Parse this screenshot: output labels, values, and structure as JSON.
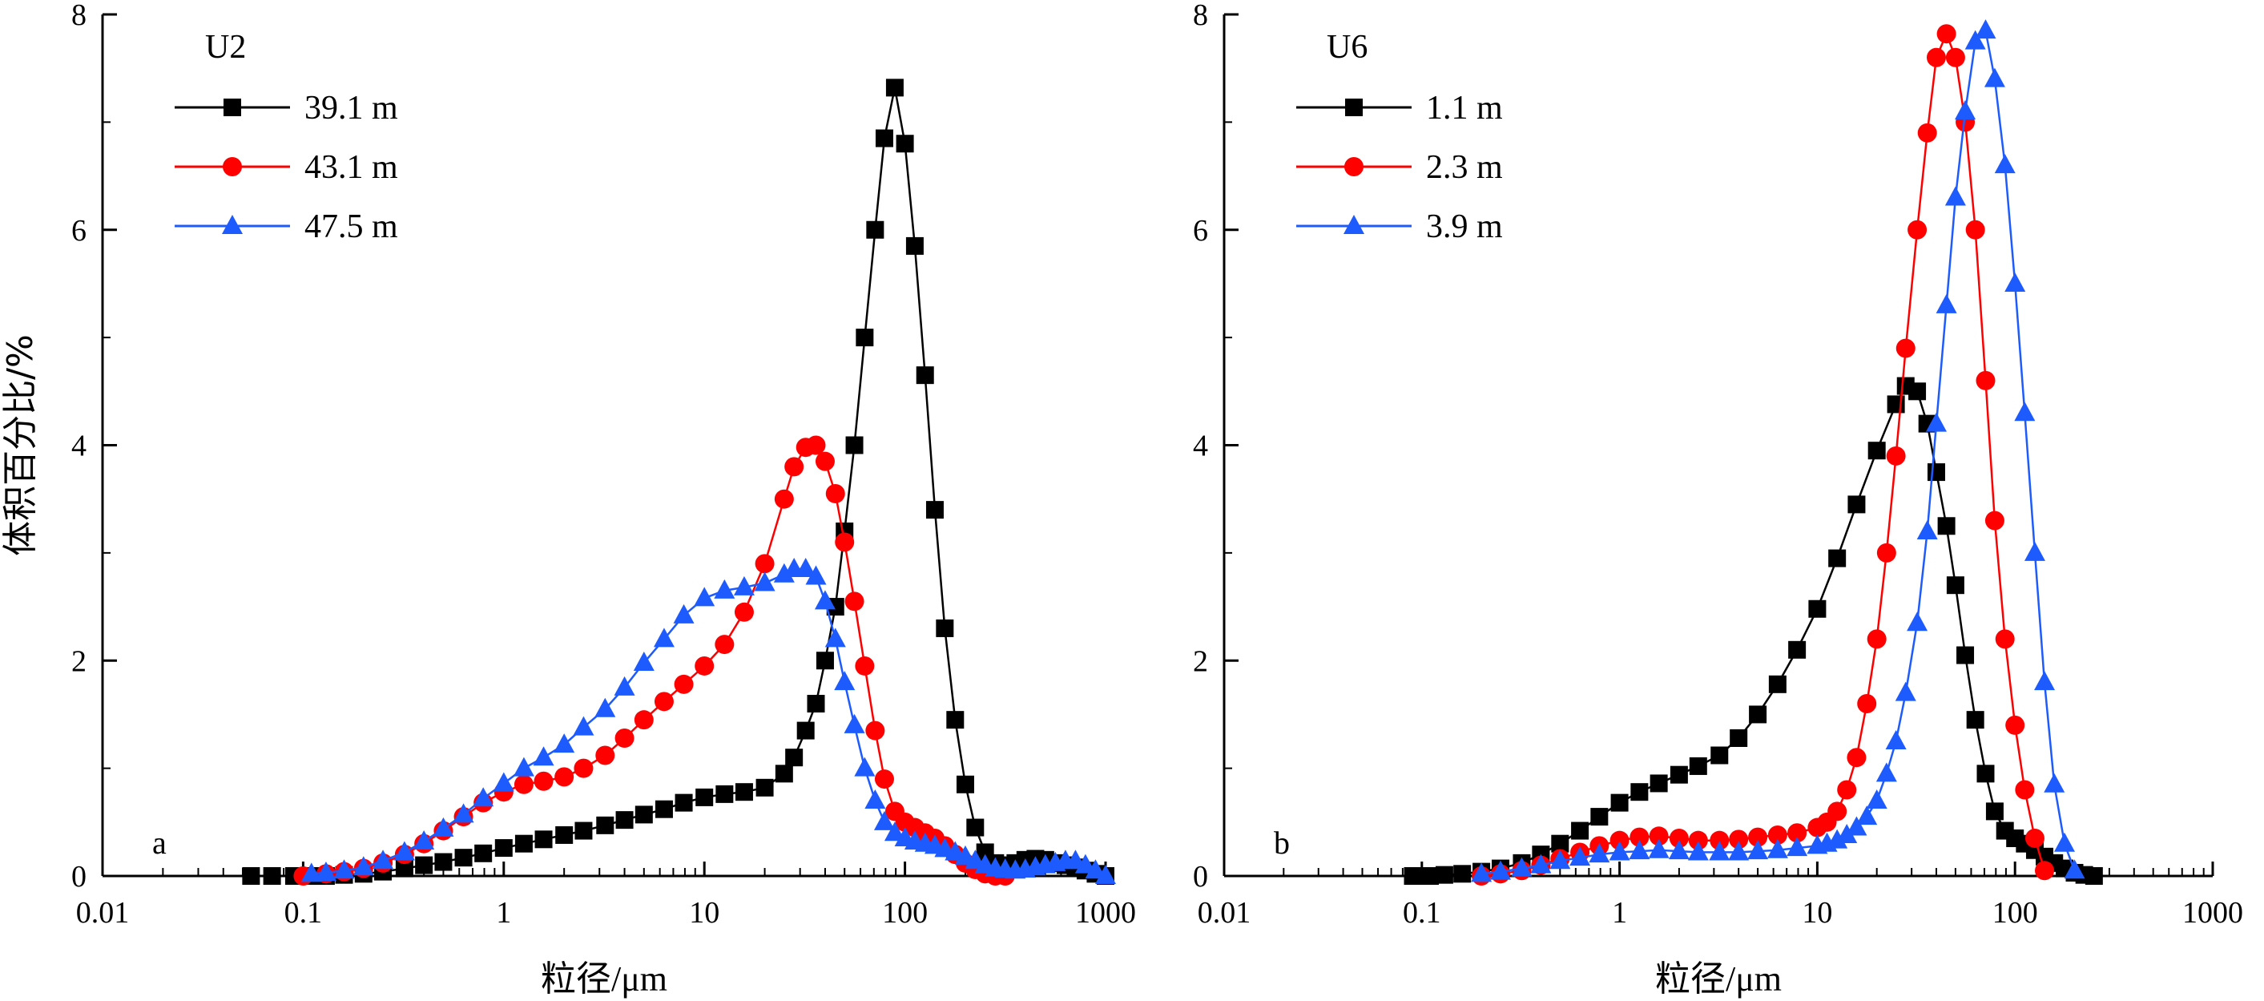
{
  "chart_data": [
    {
      "type": "line",
      "panel_id": "panel-a",
      "title": "U2",
      "panel_tag": "a",
      "xlabel": "粒径/μm",
      "ylabel": "体积百分比/%",
      "xscale": "log",
      "xlim": [
        0.01,
        1000
      ],
      "ylim": [
        0,
        8
      ],
      "xticks": [
        "0.01",
        "0.1",
        "1",
        "10",
        "100",
        "1000"
      ],
      "yticks": [
        "0",
        "2",
        "4",
        "6",
        "8"
      ],
      "legend_position": "top-left",
      "series": [
        {
          "name": "39.1 m",
          "color": "#000000",
          "marker": "square",
          "x": [
            0.055,
            0.07,
            0.09,
            0.11,
            0.13,
            0.16,
            0.2,
            0.25,
            0.32,
            0.4,
            0.5,
            0.63,
            0.79,
            1,
            1.26,
            1.58,
            2,
            2.5,
            3.2,
            4,
            5,
            6.3,
            7.9,
            10,
            12.6,
            15.8,
            20,
            25,
            28,
            32,
            36,
            40,
            45,
            50,
            56,
            63,
            71,
            79,
            89,
            100,
            112,
            126,
            141,
            158,
            178,
            200,
            224,
            251,
            282,
            316,
            355,
            398,
            447,
            501,
            562,
            631,
            708,
            794,
            891,
            1000
          ],
          "y": [
            0.0,
            0.0,
            0.0,
            0.0,
            0.0,
            0.01,
            0.02,
            0.04,
            0.07,
            0.1,
            0.13,
            0.17,
            0.21,
            0.26,
            0.3,
            0.34,
            0.38,
            0.42,
            0.47,
            0.52,
            0.57,
            0.62,
            0.68,
            0.73,
            0.76,
            0.78,
            0.82,
            0.95,
            1.1,
            1.35,
            1.6,
            2.0,
            2.5,
            3.2,
            4.0,
            5.0,
            6.0,
            6.85,
            7.32,
            6.8,
            5.85,
            4.65,
            3.4,
            2.3,
            1.45,
            0.85,
            0.45,
            0.22,
            0.12,
            0.1,
            0.12,
            0.15,
            0.16,
            0.15,
            0.12,
            0.1,
            0.08,
            0.05,
            0.02,
            0.0
          ]
        },
        {
          "name": "43.1 m",
          "color": "#ff0000",
          "marker": "circle",
          "x": [
            0.1,
            0.13,
            0.16,
            0.2,
            0.25,
            0.32,
            0.4,
            0.5,
            0.63,
            0.79,
            1,
            1.26,
            1.58,
            2,
            2.5,
            3.2,
            4,
            5,
            6.3,
            7.9,
            10,
            12.6,
            15.8,
            20,
            25,
            28,
            32,
            36,
            40,
            45,
            50,
            56,
            63,
            71,
            79,
            89,
            100,
            112,
            126,
            141,
            158,
            178,
            200,
            224,
            251,
            282,
            316
          ],
          "y": [
            0.0,
            0.02,
            0.04,
            0.07,
            0.12,
            0.2,
            0.3,
            0.42,
            0.55,
            0.68,
            0.78,
            0.85,
            0.88,
            0.92,
            1.0,
            1.12,
            1.28,
            1.45,
            1.62,
            1.78,
            1.95,
            2.15,
            2.45,
            2.9,
            3.5,
            3.8,
            3.98,
            4.0,
            3.85,
            3.55,
            3.1,
            2.55,
            1.95,
            1.35,
            0.9,
            0.6,
            0.5,
            0.45,
            0.4,
            0.35,
            0.28,
            0.2,
            0.12,
            0.06,
            0.02,
            0.0,
            0.0
          ]
        },
        {
          "name": "47.5 m",
          "color": "#1e5bff",
          "marker": "triangle",
          "x": [
            0.11,
            0.13,
            0.16,
            0.2,
            0.25,
            0.32,
            0.4,
            0.5,
            0.63,
            0.79,
            1,
            1.26,
            1.58,
            2,
            2.5,
            3.2,
            4,
            5,
            6.3,
            7.9,
            10,
            12.6,
            15.8,
            20,
            25,
            28,
            32,
            36,
            40,
            45,
            50,
            56,
            63,
            71,
            79,
            89,
            100,
            112,
            126,
            141,
            158,
            178,
            200,
            224,
            251,
            282,
            316,
            355,
            398,
            447,
            501,
            562,
            631,
            708,
            794,
            891,
            1000
          ],
          "y": [
            0.02,
            0.03,
            0.05,
            0.08,
            0.14,
            0.22,
            0.32,
            0.44,
            0.57,
            0.72,
            0.86,
            1.0,
            1.1,
            1.22,
            1.38,
            1.55,
            1.75,
            1.98,
            2.2,
            2.42,
            2.58,
            2.65,
            2.68,
            2.72,
            2.8,
            2.85,
            2.85,
            2.78,
            2.55,
            2.2,
            1.8,
            1.4,
            1.0,
            0.7,
            0.5,
            0.4,
            0.35,
            0.32,
            0.3,
            0.28,
            0.25,
            0.22,
            0.18,
            0.14,
            0.1,
            0.07,
            0.06,
            0.05,
            0.06,
            0.08,
            0.1,
            0.12,
            0.14,
            0.14,
            0.1,
            0.05,
            0.0
          ]
        }
      ]
    },
    {
      "type": "line",
      "panel_id": "panel-b",
      "title": "U6",
      "panel_tag": "b",
      "xlabel": "粒径/μm",
      "ylabel": "",
      "xscale": "log",
      "xlim": [
        0.01,
        1000
      ],
      "ylim": [
        0,
        8
      ],
      "xticks": [
        "0.01",
        "0.1",
        "1",
        "10",
        "100",
        "1000"
      ],
      "yticks": [
        "0",
        "2",
        "4",
        "6",
        "8"
      ],
      "legend_position": "top-left",
      "series": [
        {
          "name": "1.1 m",
          "color": "#000000",
          "marker": "square",
          "x": [
            0.09,
            0.11,
            0.13,
            0.16,
            0.2,
            0.25,
            0.32,
            0.4,
            0.5,
            0.63,
            0.79,
            1,
            1.26,
            1.58,
            2,
            2.5,
            3.2,
            4,
            5,
            6.3,
            7.9,
            10,
            12.6,
            15.8,
            20,
            25,
            28,
            32,
            36,
            40,
            45,
            50,
            56,
            63,
            71,
            79,
            89,
            100,
            112,
            126,
            141,
            158,
            178,
            200,
            224,
            251
          ],
          "y": [
            0.0,
            0.0,
            0.01,
            0.02,
            0.04,
            0.07,
            0.12,
            0.2,
            0.3,
            0.42,
            0.55,
            0.68,
            0.78,
            0.86,
            0.94,
            1.02,
            1.12,
            1.28,
            1.5,
            1.78,
            2.1,
            2.48,
            2.95,
            3.45,
            3.95,
            4.38,
            4.55,
            4.5,
            4.2,
            3.75,
            3.25,
            2.7,
            2.05,
            1.45,
            0.95,
            0.6,
            0.42,
            0.35,
            0.3,
            0.24,
            0.18,
            0.12,
            0.07,
            0.03,
            0.01,
            0.0
          ]
        },
        {
          "name": "2.3 m",
          "color": "#ff0000",
          "marker": "circle",
          "x": [
            0.2,
            0.25,
            0.32,
            0.4,
            0.5,
            0.63,
            0.79,
            1,
            1.26,
            1.58,
            2,
            2.5,
            3.2,
            4,
            5,
            6.3,
            7.9,
            10,
            11.2,
            12.6,
            14.1,
            15.8,
            17.8,
            20,
            22.4,
            25,
            28,
            32,
            36,
            40,
            45,
            50,
            56,
            63,
            71,
            79,
            89,
            100,
            112,
            126,
            141
          ],
          "y": [
            0.0,
            0.02,
            0.05,
            0.1,
            0.16,
            0.22,
            0.28,
            0.33,
            0.36,
            0.37,
            0.35,
            0.33,
            0.33,
            0.34,
            0.36,
            0.38,
            0.4,
            0.45,
            0.5,
            0.6,
            0.8,
            1.1,
            1.6,
            2.2,
            3.0,
            3.9,
            4.9,
            6.0,
            6.9,
            7.6,
            7.82,
            7.6,
            7.0,
            6.0,
            4.6,
            3.3,
            2.2,
            1.4,
            0.8,
            0.35,
            0.05
          ]
        },
        {
          "name": "3.9 m",
          "color": "#1e5bff",
          "marker": "triangle",
          "x": [
            0.2,
            0.25,
            0.32,
            0.4,
            0.5,
            0.63,
            0.79,
            1,
            1.26,
            1.58,
            2,
            2.5,
            3.2,
            4,
            5,
            6.3,
            7.9,
            10,
            11.2,
            12.6,
            14.1,
            15.8,
            17.8,
            20,
            22.4,
            25,
            28,
            32,
            36,
            40,
            45,
            50,
            56,
            63,
            71,
            79,
            89,
            100,
            112,
            126,
            141,
            158,
            178,
            200
          ],
          "y": [
            0.02,
            0.04,
            0.07,
            0.1,
            0.14,
            0.17,
            0.2,
            0.22,
            0.23,
            0.24,
            0.23,
            0.22,
            0.22,
            0.22,
            0.23,
            0.24,
            0.26,
            0.28,
            0.3,
            0.33,
            0.38,
            0.45,
            0.55,
            0.7,
            0.95,
            1.25,
            1.7,
            2.35,
            3.2,
            4.2,
            5.3,
            6.3,
            7.1,
            7.75,
            7.85,
            7.4,
            6.6,
            5.5,
            4.3,
            3.0,
            1.8,
            0.85,
            0.3,
            0.05
          ]
        }
      ]
    }
  ]
}
